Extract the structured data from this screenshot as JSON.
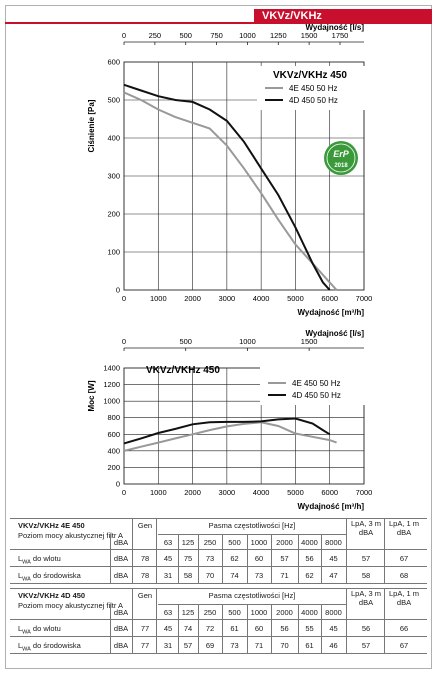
{
  "header": {
    "title": "VKVz/VKHz",
    "accent": "#c8102e"
  },
  "chart_data": [
    {
      "type": "line",
      "title": "VKVz/VKHz 450",
      "xlabel": "Wydajność [m³/h]",
      "ylabel": "Ciśnienie [Pa]",
      "x2label": "Wydajność [l/s]",
      "xlim": [
        0,
        7000
      ],
      "ylim": [
        0,
        600
      ],
      "x_ticks": [
        "0",
        "1000",
        "2000",
        "3000",
        "4000",
        "5000",
        "6000",
        "7000"
      ],
      "y_ticks": [
        "0",
        "100",
        "200",
        "300",
        "400",
        "500",
        "600"
      ],
      "x2_ticks": [
        "0",
        "250",
        "500",
        "750",
        "1000",
        "1250",
        "1500",
        "1750"
      ],
      "badge": {
        "text": "ErP",
        "year": "2018"
      },
      "series": [
        {
          "name": "4E 450 50 Hz",
          "color": "#999999",
          "x": [
            0,
            500,
            1000,
            1500,
            2000,
            2500,
            3000,
            3500,
            4000,
            4500,
            5000,
            5500,
            6000,
            6200
          ],
          "y": [
            520,
            500,
            475,
            455,
            440,
            425,
            380,
            320,
            255,
            185,
            120,
            70,
            20,
            0
          ]
        },
        {
          "name": "4D 450 50 Hz",
          "color": "#111111",
          "x": [
            0,
            500,
            1000,
            1500,
            2000,
            2500,
            3000,
            3500,
            4000,
            4500,
            5000,
            5500,
            5800,
            6000
          ],
          "y": [
            540,
            525,
            510,
            500,
            495,
            475,
            445,
            390,
            320,
            250,
            165,
            70,
            20,
            0
          ]
        }
      ]
    },
    {
      "type": "line",
      "title": "VKVz/VKHz 450",
      "xlabel": "Wydajność [m³/h]",
      "ylabel": "Moc [W]",
      "x2label": "Wydajność [l/s]",
      "xlim": [
        0,
        7000
      ],
      "ylim": [
        0,
        1400
      ],
      "x_ticks": [
        "0",
        "1000",
        "2000",
        "3000",
        "4000",
        "5000",
        "6000",
        "7000"
      ],
      "y_ticks": [
        "0",
        "200",
        "400",
        "600",
        "800",
        "1000",
        "1200",
        "1400"
      ],
      "x2_ticks": [
        "0",
        "500",
        "1000",
        "1500"
      ],
      "series": [
        {
          "name": "4E 450 50 Hz",
          "color": "#999999",
          "x": [
            0,
            500,
            1000,
            1500,
            2000,
            2500,
            3000,
            3500,
            4000,
            4500,
            5000,
            5500,
            6000,
            6200
          ],
          "y": [
            400,
            450,
            500,
            550,
            600,
            650,
            695,
            725,
            745,
            700,
            610,
            570,
            530,
            500
          ]
        },
        {
          "name": "4D 450 50 Hz",
          "color": "#111111",
          "x": [
            0,
            500,
            1000,
            1500,
            2000,
            2500,
            3000,
            3500,
            4000,
            4500,
            5000,
            5500,
            5800,
            6000
          ],
          "y": [
            490,
            550,
            615,
            665,
            720,
            745,
            750,
            750,
            755,
            780,
            790,
            730,
            650,
            600
          ]
        }
      ]
    }
  ],
  "tables": [
    {
      "model": "VKVz/VKHz 4E 450",
      "subtitle": "Poziom mocy akustycznej filtr A",
      "gen": "Gen",
      "band_header": "Pasma częstotliwości [Hz]",
      "lpa3": [
        "LpA, 3 m",
        "dBA"
      ],
      "lpa1": [
        "LpA, 1 m",
        "dBA"
      ],
      "unit_header": "dBA",
      "freqs": [
        "63",
        "125",
        "250",
        "500",
        "1000",
        "2000",
        "4000",
        "8000"
      ],
      "rows": [
        {
          "label_main": "L",
          "label_sub": "WA",
          "label_rest": " do wlotu",
          "unit": "dBA",
          "gen": "78",
          "bands": [
            "45",
            "75",
            "73",
            "62",
            "60",
            "57",
            "56",
            "45"
          ],
          "lpa3": "57",
          "lpa1": "67"
        },
        {
          "label_main": "L",
          "label_sub": "WA",
          "label_rest": " do środowiska",
          "unit": "dBA",
          "gen": "78",
          "bands": [
            "31",
            "58",
            "70",
            "74",
            "73",
            "71",
            "62",
            "47"
          ],
          "lpa3": "58",
          "lpa1": "68"
        }
      ]
    },
    {
      "model": "VKVz/VKHz 4D 450",
      "subtitle": "Poziom mocy akustycznej filtr A",
      "gen": "Gen",
      "band_header": "Pasma częstotliwości [Hz]",
      "lpa3": [
        "LpA, 3 m",
        "dBA"
      ],
      "lpa1": [
        "LpA, 1 m",
        "dBA"
      ],
      "unit_header": "dBA",
      "freqs": [
        "63",
        "125",
        "250",
        "500",
        "1000",
        "2000",
        "4000",
        "8000"
      ],
      "rows": [
        {
          "label_main": "L",
          "label_sub": "WA",
          "label_rest": " do wlotu",
          "unit": "dBA",
          "gen": "77",
          "bands": [
            "45",
            "74",
            "72",
            "61",
            "60",
            "56",
            "55",
            "45"
          ],
          "lpa3": "56",
          "lpa1": "66"
        },
        {
          "label_main": "L",
          "label_sub": "WA",
          "label_rest": " do środowiska",
          "unit": "dBA",
          "gen": "77",
          "bands": [
            "31",
            "57",
            "69",
            "73",
            "71",
            "70",
            "61",
            "46"
          ],
          "lpa3": "57",
          "lpa1": "67"
        }
      ]
    }
  ]
}
